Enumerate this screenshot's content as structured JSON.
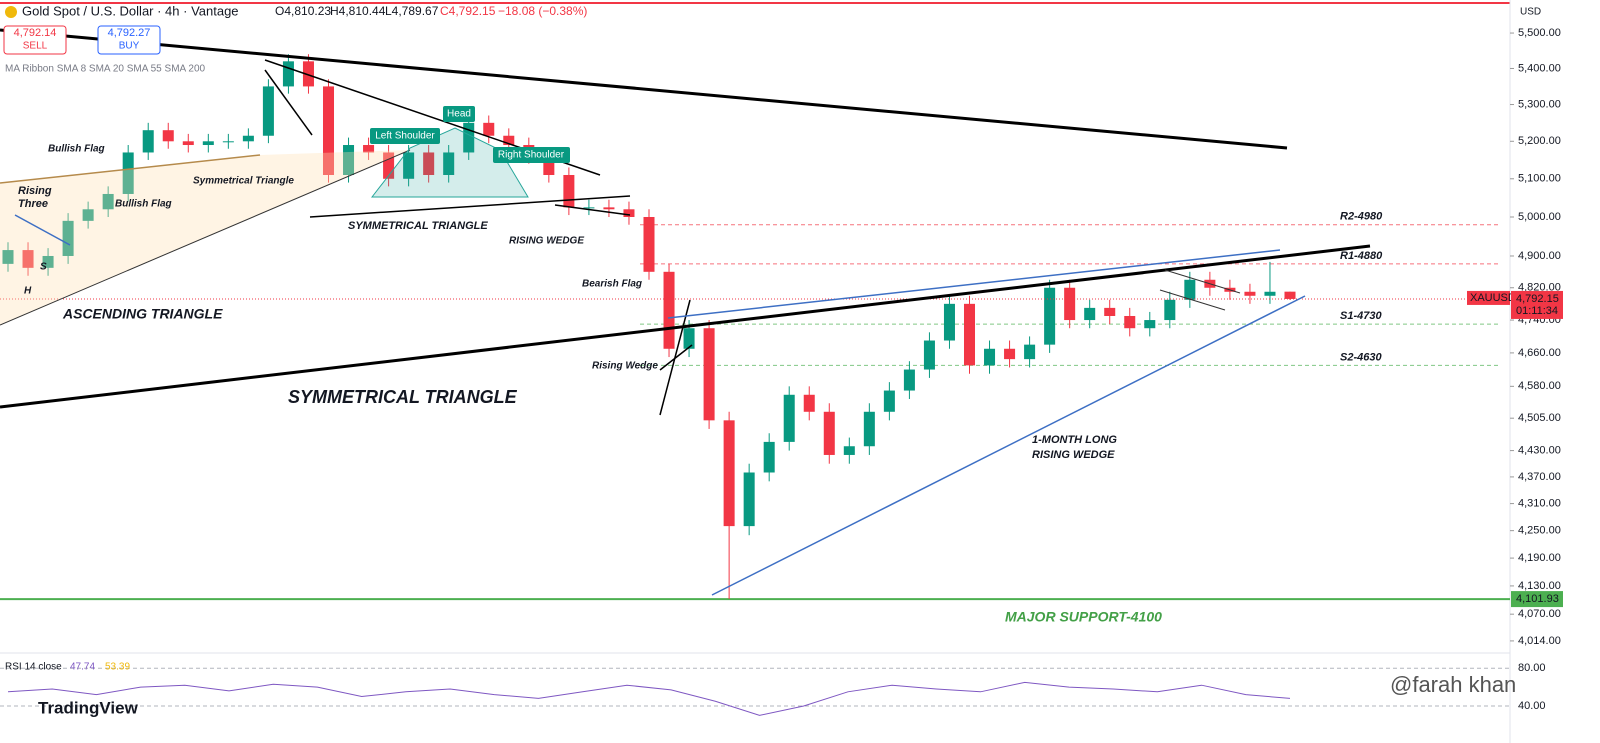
{
  "header": {
    "symbol": "Gold Spot / U.S. Dollar · 4h · Vantage",
    "open": "O4,810.23",
    "high": "H4,810.44",
    "low": "L4,789.67",
    "close": "C4,792.15",
    "change": "−18.08 (−0.38%)",
    "sell_price": "4,792.14",
    "sell": "SELL",
    "buy_price": "4,792.27",
    "buy": "BUY",
    "indicator": "MA Ribbon SMA 8 SMA 20 SMA 55 SMA 200",
    "currency": "USD",
    "brand": "TradingView",
    "watermark": "@farah khan"
  },
  "chart_data": {
    "type": "candlestick",
    "log_scale": true,
    "up_color": "#089981",
    "down_color": "#f23645",
    "ylim": [
      3991,
      5595
    ],
    "yticks": [
      {
        "value": 5500,
        "label": "5,500.00"
      },
      {
        "value": 5400,
        "label": "5,400.00"
      },
      {
        "value": 5300,
        "label": "5,300.00"
      },
      {
        "value": 5200,
        "label": "5,200.00"
      },
      {
        "value": 5100,
        "label": "5,100.00"
      },
      {
        "value": 5000,
        "label": "5,000.00"
      },
      {
        "value": 4900,
        "label": "4,900.00"
      },
      {
        "value": 4820,
        "label": "4,820.00"
      },
      {
        "value": 4740,
        "label": "4,740.00"
      },
      {
        "value": 4660,
        "label": "4,660.00"
      },
      {
        "value": 4580,
        "label": "4,580.00"
      },
      {
        "value": 4505,
        "label": "4,505.00"
      },
      {
        "value": 4430,
        "label": "4,430.00"
      },
      {
        "value": 4370,
        "label": "4,370.00"
      },
      {
        "value": 4310,
        "label": "4,310.00"
      },
      {
        "value": 4250,
        "label": "4,250.00"
      },
      {
        "value": 4190,
        "label": "4,190.00"
      },
      {
        "value": 4130,
        "label": "4,130.00"
      },
      {
        "value": 4070,
        "label": "4,070.00"
      },
      {
        "value": 4014,
        "label": "4,014.00"
      }
    ],
    "opens": [
      4880,
      4915,
      4870,
      4900,
      4990,
      5020,
      5060,
      5170,
      5230,
      5200,
      5190,
      5200,
      5200,
      5215,
      5350,
      5420,
      5350,
      5110,
      5190,
      5170,
      5100,
      5170,
      5110,
      5170,
      5250,
      5215,
      5190,
      5160,
      5110,
      5025,
      5025,
      5020,
      5000,
      4860,
      4670,
      4720,
      4500,
      4260,
      4380,
      4450,
      4560,
      4520,
      4420,
      4440,
      4520,
      4570,
      4620,
      4690,
      4780,
      4630,
      4670,
      4645,
      4680,
      4820,
      4740,
      4770,
      4750,
      4720,
      4740,
      4790,
      4840,
      4820,
      4810,
      4800,
      4810.23
    ],
    "highs": [
      4935,
      4935,
      4920,
      5010,
      5040,
      5080,
      5190,
      5250,
      5250,
      5220,
      5220,
      5220,
      5235,
      5370,
      5440,
      5440,
      5370,
      5210,
      5210,
      5190,
      5190,
      5190,
      5190,
      5270,
      5270,
      5235,
      5210,
      5180,
      5130,
      5045,
      5045,
      5040,
      5020,
      4880,
      4740,
      4740,
      4520,
      4400,
      4470,
      4580,
      4580,
      4540,
      4460,
      4540,
      4590,
      4640,
      4710,
      4800,
      4800,
      4690,
      4690,
      4700,
      4840,
      4840,
      4790,
      4790,
      4770,
      4760,
      4810,
      4860,
      4860,
      4840,
      4830,
      4885,
      4810.44
    ],
    "lows": [
      4860,
      4850,
      4850,
      4880,
      4970,
      5000,
      5040,
      5150,
      5180,
      5170,
      5170,
      5180,
      5180,
      5195,
      5330,
      5330,
      5090,
      5090,
      5150,
      5080,
      5080,
      5090,
      5090,
      5150,
      5195,
      5170,
      5140,
      5090,
      5005,
      5005,
      5000,
      4980,
      4840,
      4650,
      4650,
      4480,
      4102,
      4240,
      4360,
      4430,
      4500,
      4400,
      4400,
      4420,
      4500,
      4550,
      4600,
      4670,
      4610,
      4610,
      4625,
      4625,
      4660,
      4720,
      4720,
      4730,
      4700,
      4700,
      4720,
      4770,
      4800,
      4790,
      4780,
      4780,
      4789.67
    ],
    "closes": [
      4915,
      4870,
      4900,
      4990,
      5020,
      5060,
      5170,
      5230,
      5200,
      5190,
      5200,
      5200,
      5215,
      5350,
      5420,
      5350,
      5110,
      5190,
      5170,
      5100,
      5170,
      5110,
      5170,
      5250,
      5215,
      5190,
      5160,
      5110,
      5025,
      5025,
      5020,
      5000,
      4860,
      4670,
      4720,
      4500,
      4260,
      4380,
      4450,
      4560,
      4520,
      4420,
      4440,
      4520,
      4570,
      4620,
      4690,
      4780,
      4630,
      4670,
      4645,
      4680,
      4820,
      4740,
      4770,
      4750,
      4720,
      4740,
      4790,
      4840,
      4820,
      4810,
      4800,
      4810,
      4792.15
    ],
    "levels": [
      {
        "label": "R2-4980",
        "value": 4980,
        "color": "#f23645"
      },
      {
        "label": "R1-4880",
        "value": 4880,
        "color": "#f23645"
      },
      {
        "label": "S1-4730",
        "value": 4730,
        "color": "#4caf50"
      },
      {
        "label": "S2-4630",
        "value": 4630,
        "color": "#4caf50"
      }
    ],
    "support_line": {
      "value": 4101.93,
      "label": "4,101.93",
      "color": "#4caf50"
    },
    "price_tag": {
      "symbol": "XAUUSD",
      "value": 4792.15,
      "label": "4,792.15",
      "countdown": "01:11:34",
      "color": "#f23645"
    },
    "annotations": [
      "Bullish Flag",
      "Symmetrical Triangle",
      "Rising",
      "Three",
      "Bullish Flag",
      "S",
      "H",
      "ASCENDING TRIANGLE",
      "SYMMETRICAL TRIANGLE",
      "RISING WEDGE",
      "Bearish Flag",
      "Rising Wedge",
      "SYMMETRICAL TRIANGLE",
      "1-MONTH LONG",
      "RISING WEDGE",
      "MAJOR SUPPORT-4100",
      "Left Shoulder",
      "Head",
      "Right Shoulder"
    ],
    "rsi": {
      "title": "RSI 14 close",
      "value_label": "47.74",
      "ma_label": "53.39",
      "ylim": [
        23,
        94
      ],
      "yticks": [
        {
          "value": 80,
          "label": "80.00"
        },
        {
          "value": 40,
          "label": "40.00"
        }
      ],
      "color": "#7e57c2",
      "values": [
        55,
        58,
        52,
        60,
        62,
        56,
        63,
        60,
        50,
        55,
        58,
        52,
        48,
        55,
        62,
        57,
        45,
        30,
        40,
        55,
        62,
        58,
        55,
        65,
        60,
        58,
        55,
        62,
        52,
        48
      ]
    }
  }
}
